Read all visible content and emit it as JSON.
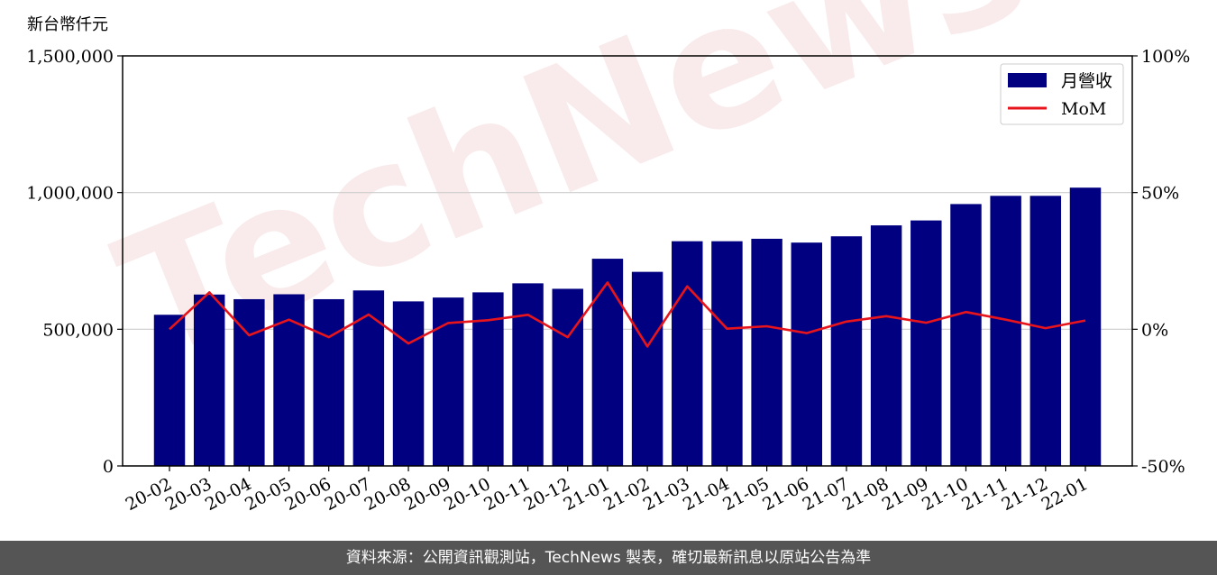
{
  "chart_data": {
    "type": "bar",
    "unit_label": "新台幣仟元",
    "categories": [
      "20-02",
      "20-03",
      "20-04",
      "20-05",
      "20-06",
      "20-07",
      "20-08",
      "20-09",
      "20-10",
      "20-11",
      "20-12",
      "21-01",
      "21-02",
      "21-03",
      "21-04",
      "21-05",
      "21-06",
      "21-07",
      "21-08",
      "21-09",
      "21-10",
      "21-11",
      "21-12",
      "22-01"
    ],
    "series": [
      {
        "name": "月營收",
        "kind": "bar",
        "color": "#000080",
        "values": [
          553000,
          627000,
          610000,
          628000,
          610000,
          642000,
          602000,
          616000,
          635000,
          668000,
          648000,
          758000,
          710000,
          822000,
          822000,
          831000,
          817000,
          840000,
          880000,
          898000,
          958000,
          988000,
          988000,
          1018000
        ]
      },
      {
        "name": "MoM",
        "kind": "line",
        "axis": "right",
        "color": "#e8141c",
        "values": [
          0,
          13.5,
          -2.2,
          3.5,
          -2.9,
          5.4,
          -5.2,
          2.3,
          3.3,
          5.3,
          -2.9,
          17.1,
          -6.3,
          15.7,
          0.2,
          1.1,
          -1.4,
          2.8,
          4.8,
          2.4,
          6.3,
          3.5,
          0.4,
          3.2
        ]
      }
    ],
    "y_left": {
      "range": [
        0,
        1500000
      ],
      "ticks": [
        "0",
        "500,000",
        "1,000,000",
        "1,500,000"
      ]
    },
    "y_right": {
      "range": [
        -50,
        100
      ],
      "ticks": [
        "-50%",
        "0%",
        "50%",
        "100%"
      ]
    },
    "grid": "horizontal",
    "legend_position": "top-right"
  },
  "watermark": "TechNews",
  "footer": {
    "text": "資料來源：公開資訊觀測站，TechNews 製表，確切最新訊息以原站公告為準"
  }
}
